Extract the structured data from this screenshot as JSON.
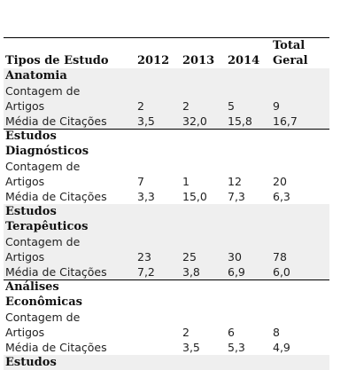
{
  "table": {
    "header": {
      "col_type": "Tipos de Estudo",
      "y2012": "2012",
      "y2013": "2013",
      "y2014": "2014",
      "total_line1": "Total",
      "total_line2": "Geral"
    },
    "groups": [
      {
        "title_lines": [
          "Anatomia"
        ],
        "rows": [
          {
            "label_lines": [
              "Contagem de",
              "Artigos"
            ],
            "y2012": "2",
            "y2013": "2",
            "y2014": "5",
            "total": "9"
          },
          {
            "label_lines": [
              "Média de Citações"
            ],
            "y2012": "3,5",
            "y2013": "32,0",
            "y2014": "15,8",
            "total": "16,7"
          }
        ]
      },
      {
        "title_lines": [
          "Estudos",
          "Diagnósticos"
        ],
        "rows": [
          {
            "label_lines": [
              "Contagem de",
              "Artigos"
            ],
            "y2012": "7",
            "y2013": "1",
            "y2014": "12",
            "total": "20"
          },
          {
            "label_lines": [
              "Média de Citações"
            ],
            "y2012": "3,3",
            "y2013": "15,0",
            "y2014": "7,3",
            "total": "6,3"
          }
        ]
      },
      {
        "title_lines": [
          "Estudos",
          "Terapêuticos"
        ],
        "rows": [
          {
            "label_lines": [
              "Contagem de",
              "Artigos"
            ],
            "y2012": "23",
            "y2013": "25",
            "y2014": "30",
            "total": "78"
          },
          {
            "label_lines": [
              "Média de Citações"
            ],
            "y2012": "7,2",
            "y2013": "3,8",
            "y2014": "6,9",
            "total": "6,0"
          }
        ]
      },
      {
        "title_lines": [
          "Análises",
          "Econômicas"
        ],
        "rows": [
          {
            "label_lines": [
              "Contagem de",
              "Artigos"
            ],
            "y2012": "",
            "y2013": "2",
            "y2014": "6",
            "total": "8"
          },
          {
            "label_lines": [
              "Média de Citações"
            ],
            "y2012": "",
            "y2013": "3,5",
            "y2014": "5,3",
            "total": "4,9"
          }
        ]
      },
      {
        "title_lines": [
          "Estudos"
        ],
        "rows": []
      }
    ]
  }
}
